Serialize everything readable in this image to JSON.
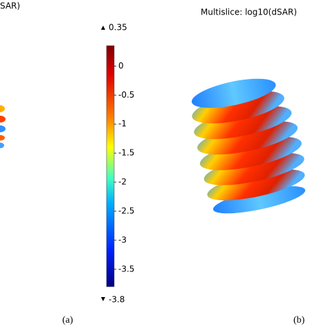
{
  "left_title": "SAR)",
  "right_title": "Multislice: log10(dSAR)",
  "colorbar": {
    "max": 0.35,
    "min": -3.8,
    "ticks": [
      0,
      -0.5,
      -1,
      -1.5,
      -2,
      -2.5,
      -3,
      -3.5
    ]
  },
  "panel_labels": [
    "(a)",
    "(b)"
  ]
}
